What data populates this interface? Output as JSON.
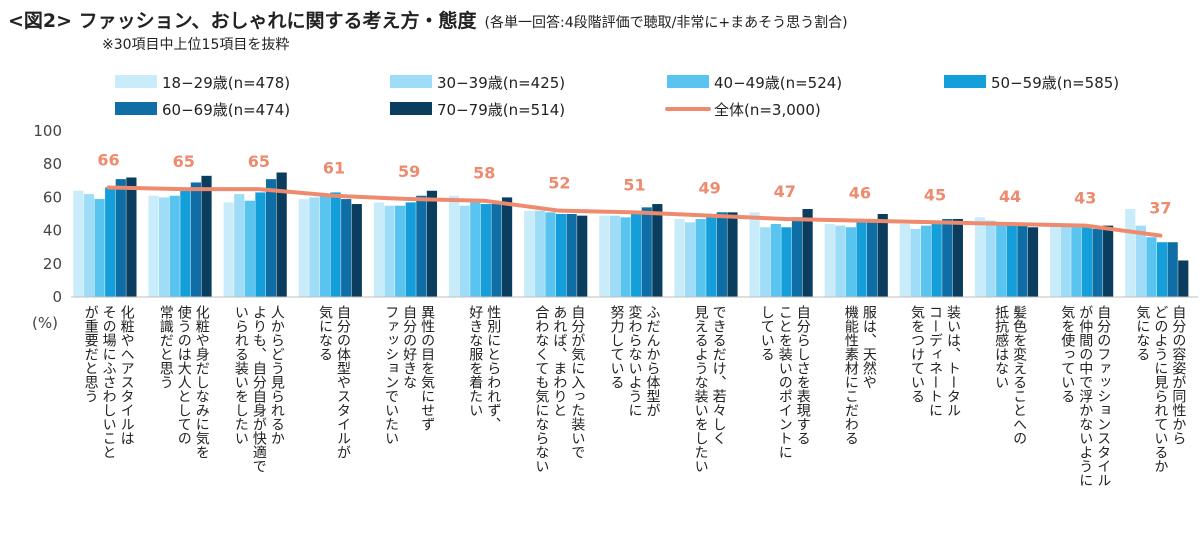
{
  "title": {
    "main": "<図2> ファッション、おしゃれに関する考え方・態度",
    "sub": "(各単一回答:4段階評価で聴取/非常に+まあそう思う割合)"
  },
  "note": "※30項目中上位15項目を抜粋",
  "chart_data": {
    "type": "bar",
    "ylabel": "(%)",
    "ylim": [
      0,
      100
    ],
    "yticks": [
      0,
      20,
      40,
      60,
      80,
      100
    ],
    "grid": false,
    "legend_position": "top",
    "categories": [
      [
        "化粧やヘアスタイルは",
        "その場にふさわしいこと",
        "が重要だと思う"
      ],
      [
        "化粧や身だしなみに気を",
        "使うのは大人としての",
        "常識だと思う"
      ],
      [
        "人からどう見られるか",
        "よりも、自分自身が快適で",
        "いられる装いをしたい"
      ],
      [
        "自分の体型やスタイルが",
        "気になる"
      ],
      [
        "異性の目を気にせず",
        "自分の好きな",
        "ファッションでいたい"
      ],
      [
        "性別にとらわれず、",
        "好きな服を着たい"
      ],
      [
        "自分が気に入った装いで",
        "あれば、まわりと",
        "合わなくても気にならない"
      ],
      [
        "ふだんから体型が",
        "変わらないように",
        "努力している"
      ],
      [
        "できるだけ、若々しく",
        "見えるような装いをしたい"
      ],
      [
        "自分らしさを表現する",
        "ことを装いのポイントに",
        "している"
      ],
      [
        "服は、天然や",
        "機能性素材にこだわる"
      ],
      [
        "装いは、トータル",
        "コーディネートに",
        "気をつけている"
      ],
      [
        "髪色を変えることへの",
        "抵抗感はない"
      ],
      [
        "自分のファッションスタイル",
        "が仲間の中で浮かないように",
        "気を使っている"
      ],
      [
        "自分の容姿が同性から",
        "どのように見られているか",
        "気になる"
      ]
    ],
    "series": [
      {
        "name": "18−29歳(n=478)",
        "color": "#c9ecfb",
        "values": [
          64,
          61,
          57,
          59,
          57,
          61,
          52,
          49,
          47,
          51,
          44,
          44,
          48,
          43,
          53
        ]
      },
      {
        "name": "30−39歳(n=425)",
        "color": "#9edcf7",
        "values": [
          62,
          60,
          62,
          60,
          55,
          55,
          52,
          49,
          45,
          42,
          43,
          41,
          46,
          43,
          43
        ]
      },
      {
        "name": "40−49歳(n=524)",
        "color": "#58c4ef",
        "values": [
          59,
          61,
          58,
          62,
          55,
          57,
          51,
          48,
          47,
          44,
          42,
          43,
          45,
          42,
          36
        ]
      },
      {
        "name": "50−59歳(n=585)",
        "color": "#159fda",
        "values": [
          66,
          65,
          63,
          63,
          57,
          56,
          50,
          50,
          48,
          42,
          45,
          44,
          44,
          43,
          33
        ]
      },
      {
        "name": "60−69歳(n=474)",
        "color": "#0e6ea5",
        "values": [
          71,
          69,
          71,
          59,
          61,
          56,
          50,
          54,
          51,
          48,
          47,
          47,
          43,
          41,
          33
        ]
      },
      {
        "name": "70−79歳(n=514)",
        "color": "#0b3d5f",
        "values": [
          72,
          73,
          75,
          56,
          64,
          60,
          49,
          56,
          51,
          53,
          50,
          47,
          42,
          43,
          22
        ]
      }
    ],
    "total": {
      "name": "全体(n=3,000)",
      "color": "#ee8a6e",
      "values": [
        66,
        65,
        65,
        61,
        59,
        58,
        52,
        51,
        49,
        47,
        46,
        45,
        44,
        43,
        37
      ]
    }
  }
}
